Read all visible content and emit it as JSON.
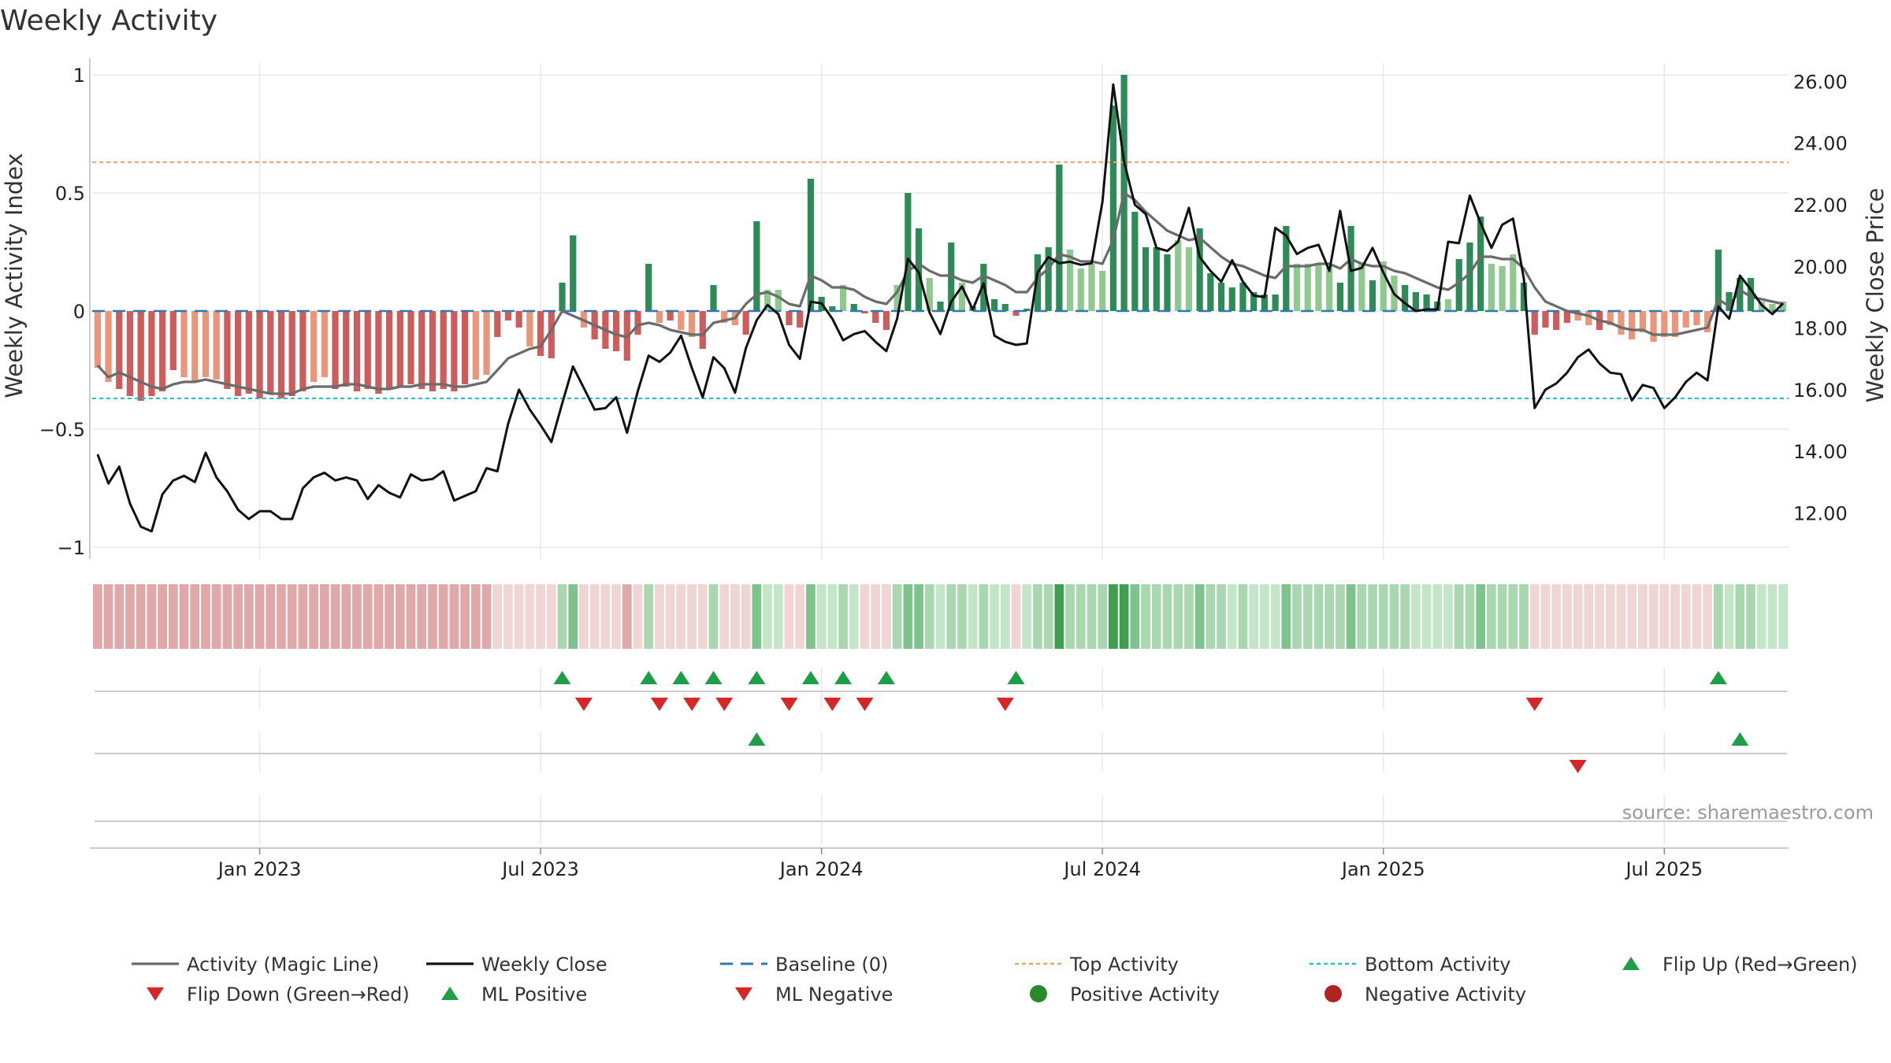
{
  "chart_data": {
    "type": "bar",
    "title": "Weekly Activity",
    "ylabel_left": "Weekly Activity Index",
    "ylabel_right": "Weekly Close Price",
    "source": "source: sharemaestro.com",
    "yticks_left": [
      {
        "v": 1,
        "label": "1"
      },
      {
        "v": 0.5,
        "label": "0.5"
      },
      {
        "v": 0,
        "label": "0"
      },
      {
        "v": -0.5,
        "label": "−0.5"
      },
      {
        "v": -1,
        "label": "−1"
      }
    ],
    "yticks_right": [
      "12.00",
      "14.00",
      "16.00",
      "18.00",
      "20.00",
      "22.00",
      "24.00",
      "26.00"
    ],
    "ylim_left": [
      -1.05,
      1.05
    ],
    "ylim_right": [
      10.5,
      26.6
    ],
    "xlim_weeks": [
      0,
      157
    ],
    "xticks": [
      {
        "week": 15,
        "label": "Jan 2023"
      },
      {
        "week": 41,
        "label": "Jul 2023"
      },
      {
        "week": 67,
        "label": "Jan 2024"
      },
      {
        "week": 93,
        "label": "Jul 2024"
      },
      {
        "week": 119,
        "label": "Jan 2025"
      },
      {
        "week": 145,
        "label": "Jul 2025"
      }
    ],
    "top_activity": 0.63,
    "bottom_activity": -0.37,
    "baseline": 0,
    "activity": [
      -0.24,
      -0.3,
      -0.33,
      -0.36,
      -0.38,
      -0.36,
      -0.34,
      -0.25,
      -0.28,
      -0.3,
      -0.28,
      -0.29,
      -0.33,
      -0.36,
      -0.35,
      -0.37,
      -0.35,
      -0.37,
      -0.36,
      -0.34,
      -0.3,
      -0.28,
      -0.33,
      -0.32,
      -0.34,
      -0.33,
      -0.35,
      -0.33,
      -0.32,
      -0.31,
      -0.33,
      -0.34,
      -0.33,
      -0.34,
      -0.31,
      -0.29,
      -0.27,
      -0.11,
      -0.04,
      -0.07,
      -0.15,
      -0.19,
      -0.2,
      0.12,
      0.32,
      -0.07,
      -0.12,
      -0.16,
      -0.17,
      -0.21,
      -0.1,
      0.2,
      -0.05,
      -0.04,
      -0.08,
      -0.11,
      -0.16,
      0.11,
      -0.05,
      -0.06,
      -0.1,
      0.38,
      0.09,
      0.09,
      -0.06,
      -0.07,
      0.56,
      0.06,
      0.02,
      0.11,
      0.03,
      -0.01,
      -0.05,
      -0.08,
      0.11,
      0.5,
      0.35,
      0.14,
      0.04,
      0.29,
      0.12,
      0.02,
      0.2,
      0.05,
      0.03,
      -0.02,
      0.01,
      0.24,
      0.27,
      0.62,
      0.26,
      0.18,
      0.2,
      0.17,
      0.87,
      1.0,
      0.42,
      0.27,
      0.27,
      0.24,
      0.3,
      0.27,
      0.35,
      0.16,
      0.12,
      0.1,
      0.12,
      0.08,
      0.07,
      0.07,
      0.36,
      0.2,
      0.2,
      0.2,
      0.19,
      0.12,
      0.36,
      0.2,
      0.13,
      0.21,
      0.15,
      0.11,
      0.08,
      0.07,
      0.04,
      0.05,
      0.22,
      0.29,
      0.4,
      0.2,
      0.19,
      0.24,
      0.12,
      -0.1,
      -0.07,
      -0.08,
      -0.05,
      -0.04,
      -0.06,
      -0.08,
      -0.06,
      -0.1,
      -0.12,
      -0.09,
      -0.13,
      -0.11,
      -0.11,
      -0.07,
      -0.06,
      -0.09,
      0.26,
      0.08,
      0.14,
      0.14,
      0.04,
      0.03,
      0.04
    ],
    "close": [
      13.9,
      12.95,
      13.5,
      12.3,
      11.55,
      11.4,
      12.6,
      13.05,
      13.2,
      13.0,
      13.95,
      13.15,
      12.7,
      12.1,
      11.8,
      12.05,
      12.05,
      11.8,
      11.8,
      12.8,
      13.15,
      13.3,
      13.05,
      13.15,
      13.05,
      12.45,
      12.9,
      12.65,
      12.5,
      13.25,
      13.05,
      13.1,
      13.35,
      12.4,
      12.55,
      12.7,
      13.45,
      13.35,
      14.9,
      16.0,
      15.35,
      14.85,
      14.3,
      15.55,
      16.75,
      16.05,
      15.35,
      15.4,
      15.75,
      14.6,
      15.95,
      17.1,
      16.9,
      17.2,
      17.75,
      16.7,
      15.75,
      17.05,
      16.7,
      15.9,
      17.35,
      18.25,
      18.75,
      18.45,
      17.45,
      17.0,
      18.85,
      18.8,
      18.3,
      17.6,
      17.8,
      17.9,
      17.55,
      17.25,
      18.3,
      20.25,
      19.8,
      18.5,
      17.8,
      18.85,
      19.35,
      18.6,
      19.45,
      17.75,
      17.55,
      17.45,
      17.5,
      19.8,
      20.3,
      20.1,
      20.15,
      20.05,
      20.1,
      22.1,
      25.9,
      23.4,
      22.0,
      21.7,
      20.6,
      20.5,
      20.8,
      21.9,
      20.3,
      19.85,
      19.5,
      20.2,
      19.5,
      19.05,
      19.0,
      21.25,
      21.0,
      20.4,
      20.6,
      20.7,
      19.85,
      21.8,
      19.85,
      19.95,
      20.6,
      19.8,
      19.1,
      18.8,
      18.55,
      18.6,
      18.6,
      20.8,
      20.75,
      22.3,
      21.4,
      20.6,
      21.35,
      21.55,
      19.6,
      15.4,
      16.0,
      16.2,
      16.55,
      17.05,
      17.3,
      16.85,
      16.55,
      16.5,
      15.65,
      16.15,
      16.05,
      15.4,
      15.75,
      16.25,
      16.55,
      16.3,
      18.7,
      18.3,
      19.7,
      19.25,
      18.75,
      18.45,
      18.8
    ],
    "magic_line": [
      -0.23,
      -0.28,
      -0.26,
      -0.28,
      -0.3,
      -0.32,
      -0.33,
      -0.31,
      -0.3,
      -0.3,
      -0.29,
      -0.3,
      -0.31,
      -0.32,
      -0.33,
      -0.34,
      -0.35,
      -0.35,
      -0.35,
      -0.33,
      -0.32,
      -0.32,
      -0.32,
      -0.31,
      -0.31,
      -0.32,
      -0.33,
      -0.33,
      -0.32,
      -0.32,
      -0.31,
      -0.31,
      -0.31,
      -0.32,
      -0.32,
      -0.31,
      -0.3,
      -0.25,
      -0.2,
      -0.18,
      -0.16,
      -0.15,
      -0.08,
      0.0,
      -0.02,
      -0.04,
      -0.06,
      -0.08,
      -0.1,
      -0.11,
      -0.06,
      -0.05,
      -0.06,
      -0.08,
      -0.09,
      -0.1,
      -0.1,
      -0.05,
      -0.04,
      -0.03,
      0.03,
      0.07,
      0.08,
      0.06,
      0.03,
      0.02,
      0.15,
      0.13,
      0.1,
      0.1,
      0.09,
      0.06,
      0.04,
      0.03,
      0.08,
      0.17,
      0.2,
      0.17,
      0.15,
      0.15,
      0.13,
      0.12,
      0.15,
      0.13,
      0.11,
      0.08,
      0.08,
      0.14,
      0.18,
      0.24,
      0.23,
      0.21,
      0.21,
      0.2,
      0.3,
      0.5,
      0.47,
      0.42,
      0.38,
      0.34,
      0.32,
      0.3,
      0.31,
      0.27,
      0.23,
      0.2,
      0.19,
      0.17,
      0.15,
      0.14,
      0.19,
      0.19,
      0.19,
      0.2,
      0.2,
      0.18,
      0.22,
      0.2,
      0.19,
      0.19,
      0.17,
      0.16,
      0.14,
      0.12,
      0.1,
      0.09,
      0.12,
      0.16,
      0.23,
      0.23,
      0.22,
      0.22,
      0.18,
      0.1,
      0.04,
      0.02,
      0.0,
      -0.01,
      -0.02,
      -0.04,
      -0.05,
      -0.07,
      -0.08,
      -0.08,
      -0.1,
      -0.1,
      -0.1,
      -0.09,
      -0.08,
      -0.07,
      0.05,
      0.02,
      0.09,
      0.06,
      0.05,
      0.04,
      0.03
    ],
    "flip_up_weeks": [
      43,
      51,
      54,
      57,
      61,
      66,
      69,
      73,
      85,
      150
    ],
    "flip_down_weeks": [
      45,
      52,
      55,
      58,
      64,
      68,
      71,
      84,
      133
    ],
    "ml_positive_weeks": [
      61,
      152
    ],
    "ml_negative_weeks": [
      137
    ],
    "legend": [
      {
        "key": "magic",
        "label": "Activity (Magic Line)",
        "color": "#6b6b6b"
      },
      {
        "key": "close",
        "label": "Weekly Close",
        "color": "#111111"
      },
      {
        "key": "baseline",
        "label": "Baseline (0)",
        "color": "#2f78b7"
      },
      {
        "key": "top",
        "label": "Top Activity",
        "color": "#f0a36b"
      },
      {
        "key": "bottom",
        "label": "Bottom Activity",
        "color": "#23c1cf"
      },
      {
        "key": "flipup",
        "label": "Flip Up (Red→Green)",
        "color": "#1f9e47"
      },
      {
        "key": "flipdown",
        "label": "Flip Down (Green→Red)",
        "color": "#d62728"
      },
      {
        "key": "mlpos",
        "label": "ML Positive",
        "color": "#1f9e47"
      },
      {
        "key": "mlneg",
        "label": "ML Negative",
        "color": "#d62728"
      },
      {
        "key": "posact",
        "label": "Positive Activity",
        "color": "#2a8a2a"
      },
      {
        "key": "negact",
        "label": "Negative Activity",
        "color": "#b22222"
      }
    ],
    "colors": {
      "strong_red": "#cd5c5c",
      "light_red": "#e9967a",
      "strong_green": "#2e8b57",
      "light_green": "#8fc98f",
      "band_red": "#e0a8a8",
      "band_red_light": "#f0d5d5",
      "band_green": "#3f9e4f",
      "band_green_light": "#c3e6c8"
    }
  }
}
